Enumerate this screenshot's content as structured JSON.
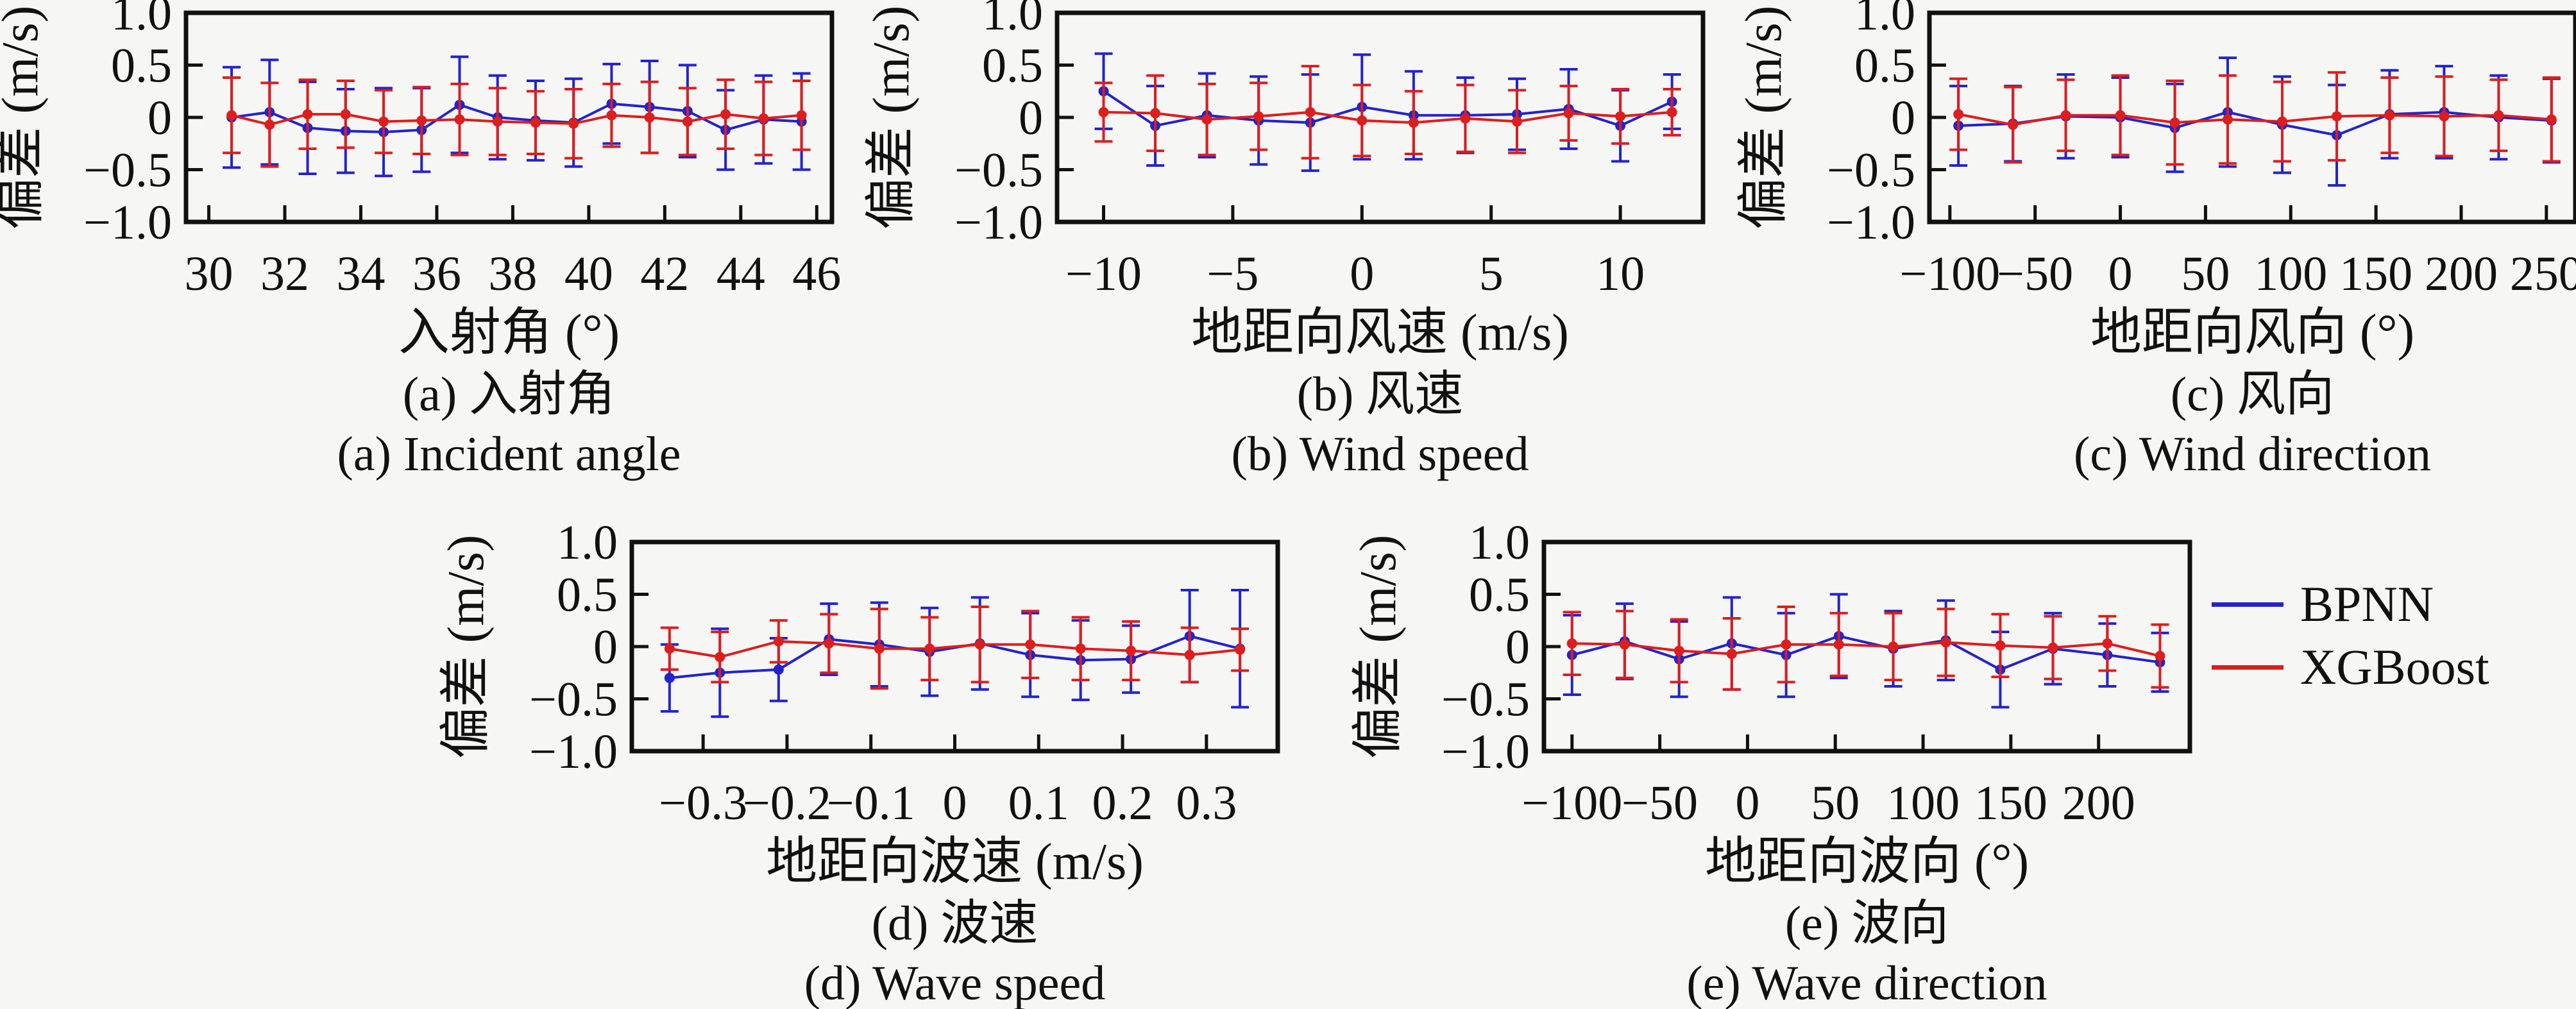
{
  "figure": {
    "background": "#f6f6f4",
    "spine_color": "#111111"
  },
  "legend": {
    "position": "right-of-panel-e",
    "items": [
      {
        "label": "BPNN",
        "color": "#2323cc"
      },
      {
        "label": "XGBoost",
        "color": "#dc1e1e"
      }
    ]
  },
  "chart_data": [
    {
      "id": "a",
      "type": "line",
      "title_zh": "(a) 入射角",
      "title_en": "(a) Incident angle",
      "xlabel": "入射角 (°)",
      "ylabel": "偏差 (m/s)",
      "xlim": [
        29.4,
        46.4
      ],
      "ylim": [
        -1.0,
        1.0
      ],
      "grid": false,
      "xticks": {
        "values": [
          30,
          32,
          34,
          36,
          38,
          40,
          42,
          44,
          46
        ],
        "labels": [
          "30",
          "32",
          "34",
          "36",
          "38",
          "40",
          "42",
          "44",
          "46"
        ]
      },
      "yticks": {
        "values": [
          1.0,
          0.5,
          0,
          -0.5,
          -1.0
        ],
        "labels": [
          "1.0",
          "0.5",
          "0",
          "−0.5",
          "−1.0"
        ]
      },
      "x": [
        30.6,
        31.6,
        32.6,
        33.6,
        34.6,
        35.6,
        36.6,
        37.6,
        38.6,
        39.6,
        40.6,
        41.6,
        42.6,
        43.6,
        44.6,
        45.6
      ],
      "series": [
        {
          "name": "BPNN",
          "color": "#2323cc",
          "mean": [
            0.0,
            0.05,
            -0.1,
            -0.13,
            -0.14,
            -0.12,
            0.12,
            0.0,
            -0.03,
            -0.05,
            0.13,
            0.1,
            0.06,
            -0.12,
            -0.02,
            -0.04
          ],
          "err": [
            0.48,
            0.5,
            0.44,
            0.4,
            0.42,
            0.4,
            0.46,
            0.4,
            0.38,
            0.42,
            0.38,
            0.44,
            0.44,
            0.38,
            0.42,
            0.46
          ]
        },
        {
          "name": "XGBoost",
          "color": "#dc1e1e",
          "mean": [
            0.02,
            -0.07,
            0.03,
            0.03,
            -0.04,
            -0.03,
            -0.02,
            -0.04,
            -0.05,
            -0.06,
            0.02,
            0.0,
            -0.04,
            0.03,
            -0.01,
            0.02
          ],
          "err": [
            0.36,
            0.4,
            0.33,
            0.32,
            0.3,
            0.32,
            0.34,
            0.32,
            0.3,
            0.33,
            0.3,
            0.34,
            0.32,
            0.33,
            0.35,
            0.33
          ]
        }
      ]
    },
    {
      "id": "b",
      "type": "line",
      "title_zh": "(b) 风速",
      "title_en": "(b) Wind speed",
      "xlabel": "地距向风速 (m/s)",
      "ylabel": "偏差 (m/s)",
      "xlim": [
        -11.8,
        13.2
      ],
      "ylim": [
        -1.0,
        1.0
      ],
      "grid": false,
      "xticks": {
        "values": [
          -10,
          -5,
          0,
          5,
          10
        ],
        "labels": [
          "−10",
          "−5",
          "0",
          "5",
          "10"
        ]
      },
      "yticks": {
        "values": [
          1.0,
          0.5,
          0,
          -0.5,
          -1.0
        ],
        "labels": [
          "1.0",
          "0.5",
          "0",
          "−0.5",
          "−1.0"
        ]
      },
      "x": [
        -10,
        -8,
        -6,
        -4,
        -2,
        0,
        2,
        4,
        6,
        8,
        10,
        12
      ],
      "series": [
        {
          "name": "BPNN",
          "color": "#2323cc",
          "mean": [
            0.25,
            -0.08,
            0.02,
            -0.03,
            -0.05,
            0.1,
            0.02,
            0.02,
            0.03,
            0.08,
            -0.08,
            0.15
          ],
          "err": [
            0.36,
            0.38,
            0.4,
            0.42,
            0.46,
            0.5,
            0.42,
            0.36,
            0.34,
            0.38,
            0.34,
            0.26
          ]
        },
        {
          "name": "XGBoost",
          "color": "#dc1e1e",
          "mean": [
            0.05,
            0.04,
            -0.02,
            0.01,
            0.05,
            -0.03,
            -0.05,
            -0.01,
            -0.04,
            0.04,
            0.01,
            0.05
          ],
          "err": [
            0.28,
            0.36,
            0.34,
            0.32,
            0.44,
            0.34,
            0.3,
            0.32,
            0.3,
            0.26,
            0.26,
            0.22
          ]
        }
      ]
    },
    {
      "id": "c",
      "type": "line",
      "title_zh": "(c) 风向",
      "title_en": "(c) Wind direction",
      "xlabel": "地距向风向 (°)",
      "ylabel": "偏差 (m/s)",
      "xlim": [
        -112,
        267
      ],
      "ylim": [
        -1.0,
        1.0
      ],
      "grid": false,
      "xticks": {
        "values": [
          -100,
          -50,
          0,
          50,
          100,
          150,
          200,
          250
        ],
        "labels": [
          "−100",
          "−50",
          "0",
          "50",
          "100",
          "150",
          "200",
          "250"
        ]
      },
      "yticks": {
        "values": [
          1.0,
          0.5,
          0,
          -0.5,
          -1.0
        ],
        "labels": [
          "1.0",
          "0.5",
          "0",
          "−0.5",
          "−1.0"
        ]
      },
      "x": [
        -95,
        -63,
        -32,
        0,
        32,
        63,
        95,
        127,
        158,
        190,
        222,
        253
      ],
      "series": [
        {
          "name": "BPNN",
          "color": "#2323cc",
          "mean": [
            -0.08,
            -0.06,
            0.01,
            0.0,
            -0.1,
            0.05,
            -0.07,
            -0.17,
            0.03,
            0.05,
            0.0,
            -0.03
          ],
          "err": [
            0.38,
            0.36,
            0.4,
            0.38,
            0.42,
            0.52,
            0.46,
            0.48,
            0.42,
            0.44,
            0.4,
            0.4
          ]
        },
        {
          "name": "XGBoost",
          "color": "#dc1e1e",
          "mean": [
            0.03,
            -0.07,
            0.02,
            0.02,
            -0.05,
            -0.02,
            -0.04,
            0.01,
            0.02,
            0.01,
            0.02,
            -0.02
          ],
          "err": [
            0.34,
            0.36,
            0.34,
            0.38,
            0.4,
            0.42,
            0.38,
            0.42,
            0.36,
            0.38,
            0.34,
            0.4
          ]
        }
      ]
    },
    {
      "id": "d",
      "type": "line",
      "title_zh": "(d) 波速",
      "title_en": "(d) Wave speed",
      "xlabel": "地距向波速 (m/s)",
      "ylabel": "偏差 (m/s)",
      "xlim": [
        -0.385,
        0.385
      ],
      "ylim": [
        -1.0,
        1.0
      ],
      "grid": false,
      "xticks": {
        "values": [
          -0.3,
          -0.2,
          -0.1,
          0,
          0.1,
          0.2,
          0.3
        ],
        "labels": [
          "−0.3",
          "−0.2",
          "−0.1",
          "0",
          "0.1",
          "0.2",
          "0.3"
        ]
      },
      "yticks": {
        "values": [
          1.0,
          0.5,
          0,
          -0.5,
          -1.0
        ],
        "labels": [
          "1.0",
          "0.5",
          "0",
          "−0.5",
          "−1.0"
        ]
      },
      "x": [
        -0.34,
        -0.28,
        -0.21,
        -0.15,
        -0.09,
        -0.03,
        0.03,
        0.09,
        0.15,
        0.21,
        0.28,
        0.34
      ],
      "series": [
        {
          "name": "BPNN",
          "color": "#2323cc",
          "mean": [
            -0.3,
            -0.25,
            -0.22,
            0.07,
            0.02,
            -0.05,
            0.03,
            -0.08,
            -0.13,
            -0.12,
            0.1,
            -0.02
          ],
          "err": [
            0.32,
            0.42,
            0.3,
            0.34,
            0.4,
            0.42,
            0.44,
            0.4,
            0.38,
            0.32,
            0.44,
            0.56
          ]
        },
        {
          "name": "XGBoost",
          "color": "#dc1e1e",
          "mean": [
            -0.02,
            -0.1,
            0.05,
            0.03,
            -0.02,
            -0.02,
            0.02,
            0.02,
            -0.02,
            -0.04,
            -0.08,
            -0.03
          ],
          "err": [
            0.2,
            0.24,
            0.2,
            0.28,
            0.38,
            0.3,
            0.36,
            0.32,
            0.3,
            0.28,
            0.26,
            0.2
          ]
        }
      ]
    },
    {
      "id": "e",
      "type": "line",
      "title_zh": "(e) 波向",
      "title_en": "(e) Wave direction",
      "xlabel": "地距向波向 (°)",
      "ylabel": "偏差 (m/s)",
      "xlim": [
        -116,
        252
      ],
      "ylim": [
        -1.0,
        1.0
      ],
      "grid": false,
      "xticks": {
        "values": [
          -100,
          -50,
          0,
          50,
          100,
          150,
          200
        ],
        "labels": [
          "−100",
          "−50",
          "0",
          "50",
          "100",
          "150",
          "200"
        ]
      },
      "yticks": {
        "values": [
          1.0,
          0.5,
          0,
          -0.5,
          -1.0
        ],
        "labels": [
          "1.0",
          "0.5",
          "0",
          "−0.5",
          "−1.0"
        ]
      },
      "x": [
        -100,
        -70,
        -39,
        -9,
        22,
        52,
        83,
        113,
        144,
        174,
        205,
        235
      ],
      "series": [
        {
          "name": "BPNN",
          "color": "#2323cc",
          "mean": [
            -0.08,
            0.05,
            -0.12,
            0.03,
            -0.08,
            0.1,
            -0.02,
            0.06,
            -0.22,
            -0.02,
            -0.08,
            -0.15
          ],
          "err": [
            0.38,
            0.36,
            0.36,
            0.44,
            0.4,
            0.4,
            0.36,
            0.38,
            0.36,
            0.34,
            0.3,
            0.28
          ]
        },
        {
          "name": "XGBoost",
          "color": "#dc1e1e",
          "mean": [
            0.03,
            0.02,
            -0.04,
            -0.07,
            0.02,
            0.02,
            0.0,
            0.04,
            0.01,
            -0.01,
            0.03,
            -0.09
          ],
          "err": [
            0.3,
            0.32,
            0.3,
            0.34,
            0.36,
            0.3,
            0.32,
            0.32,
            0.3,
            0.3,
            0.26,
            0.3
          ]
        }
      ]
    }
  ]
}
